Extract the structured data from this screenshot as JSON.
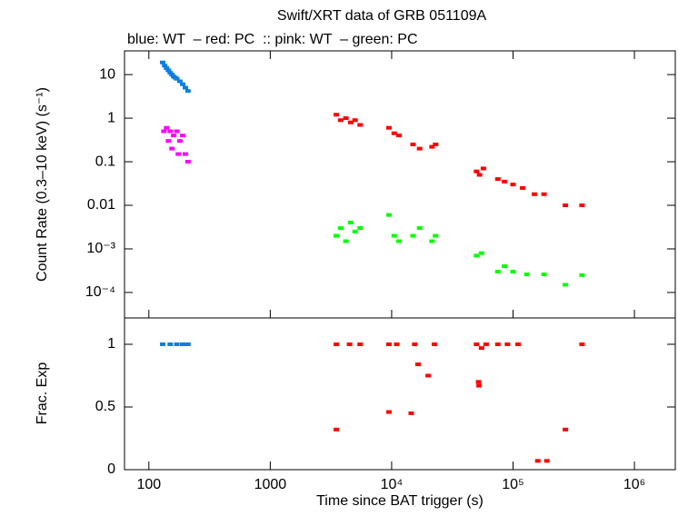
{
  "chart_data": [
    {
      "type": "scatter",
      "title": "Swift/XRT data of GRB 051109A",
      "subtitle": "blue: WT  – red: PC  :: pink: WT  – green: PC",
      "ylabel": "Count Rate (0.3–10 keV) (s⁻¹)",
      "xscale": "log",
      "yscale": "log",
      "xlim": [
        63,
        2170000
      ],
      "ylim": [
        2.6e-05,
        35
      ],
      "yticks": [
        10,
        1,
        0.1,
        0.01,
        {
          "value": 0.001,
          "label": "10⁻³"
        },
        {
          "value": 0.0001,
          "label": "10⁻⁴"
        }
      ],
      "series": [
        {
          "color": "#0c7fe0",
          "x": [
            130,
            135,
            140,
            145,
            150,
            155,
            160,
            165,
            170,
            180,
            190,
            200,
            210
          ],
          "values": [
            19,
            16,
            14,
            12.5,
            11,
            10,
            9,
            8.5,
            8,
            7,
            6,
            5,
            4.2
          ]
        },
        {
          "color": "#ff00ff",
          "x": [
            133,
            140,
            145,
            150,
            155,
            160,
            170,
            175,
            180,
            190,
            200,
            210
          ],
          "values": [
            0.5,
            0.6,
            0.3,
            0.5,
            0.2,
            0.4,
            0.5,
            0.15,
            0.3,
            0.4,
            0.15,
            0.1
          ]
        },
        {
          "color": "#ff0000",
          "x": [
            3500,
            3800,
            4200,
            4600,
            5000,
            5500,
            9500,
            10500,
            11500,
            15000,
            17000,
            21500,
            23000,
            50000,
            53000,
            57000,
            75000,
            85000,
            100000,
            120000,
            150000,
            180000,
            270000,
            370000
          ],
          "values": [
            1.2,
            0.9,
            1.0,
            0.8,
            0.9,
            0.7,
            0.6,
            0.45,
            0.4,
            0.25,
            0.2,
            0.22,
            0.25,
            0.06,
            0.05,
            0.07,
            0.04,
            0.035,
            0.03,
            0.025,
            0.018,
            0.018,
            0.01,
            0.01
          ]
        },
        {
          "color": "#00ff00",
          "x": [
            3500,
            3800,
            4200,
            4600,
            5000,
            5500,
            9500,
            10500,
            11500,
            15000,
            17000,
            21500,
            23000,
            50000,
            55000,
            75000,
            85000,
            100000,
            130000,
            180000,
            270000,
            370000
          ],
          "values": [
            0.002,
            0.003,
            0.0015,
            0.004,
            0.0025,
            0.003,
            0.006,
            0.002,
            0.0015,
            0.002,
            0.003,
            0.0015,
            0.002,
            0.0007,
            0.0008,
            0.0003,
            0.0004,
            0.0003,
            0.00026,
            0.00026,
            0.00015,
            0.00025
          ]
        }
      ]
    },
    {
      "type": "scatter",
      "ylabel": "Frac. Exp",
      "xlabel": "Time since BAT trigger (s)",
      "xscale": "log",
      "xlim": [
        63,
        2170000
      ],
      "ylim": [
        0,
        1.21
      ],
      "xticks": [
        100,
        1000,
        {
          "value": 10000,
          "label": "10⁴"
        },
        {
          "value": 100000,
          "label": "10⁵"
        },
        {
          "value": 1000000,
          "label": "10⁶"
        }
      ],
      "yticks": [
        0,
        0.5,
        1
      ],
      "series": [
        {
          "color": "#0c7fe0",
          "x": [
            130,
            150,
            170,
            190,
            210
          ],
          "values": [
            1,
            1,
            1,
            1,
            1
          ]
        },
        {
          "color": "#ff0000",
          "x": [
            3500,
            4500,
            5500,
            3500,
            9500,
            11000,
            9500,
            14500,
            15500,
            16500,
            20000,
            22500,
            50000,
            52000,
            52500,
            55000,
            60000,
            75000,
            90000,
            110000,
            160000,
            190000,
            270000,
            370000
          ],
          "values": [
            1,
            1,
            1,
            0.32,
            1,
            1,
            0.46,
            0.45,
            1,
            0.84,
            0.75,
            1,
            1,
            0.7,
            0.67,
            0.97,
            1,
            1,
            1,
            1,
            0.07,
            0.07,
            0.32,
            1
          ]
        }
      ]
    }
  ]
}
